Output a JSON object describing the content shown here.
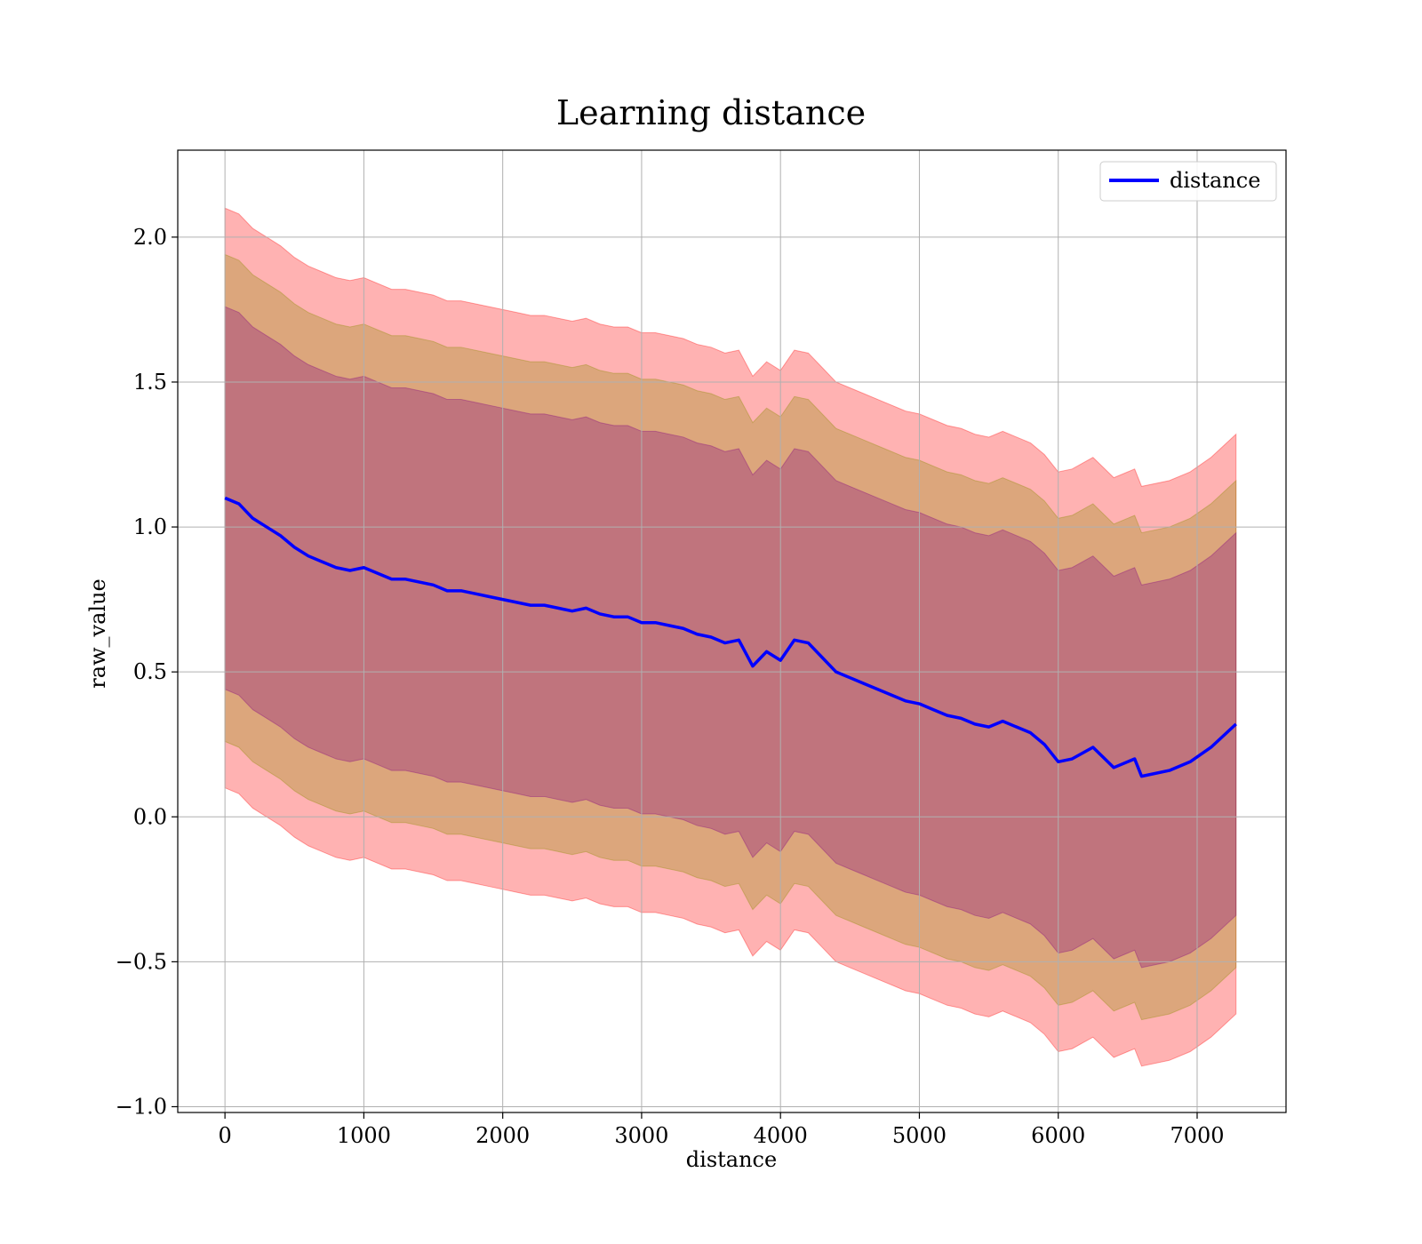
{
  "chart_data": {
    "type": "line",
    "title": "Learning distance",
    "xlabel": "distance",
    "ylabel": "raw_value",
    "xlim": [
      -340,
      7640
    ],
    "ylim": [
      -1.02,
      2.3
    ],
    "x_ticks": [
      0,
      1000,
      2000,
      3000,
      4000,
      5000,
      6000,
      7000
    ],
    "x_tick_labels": [
      "0",
      "1000",
      "2000",
      "3000",
      "4000",
      "5000",
      "6000",
      "7000"
    ],
    "y_ticks": [
      -1.0,
      -0.5,
      0.0,
      0.5,
      1.0,
      1.5,
      2.0
    ],
    "y_tick_labels": [
      "−1.0",
      "−0.5",
      "0.0",
      "0.5",
      "1.0",
      "1.5",
      "2.0"
    ],
    "grid": true,
    "legend": {
      "position": "top-right",
      "entries": [
        "distance"
      ]
    },
    "colors": {
      "line": "#0000ff",
      "band_outer": "#ff0000",
      "band_middle": "#8b8b00",
      "band_inner": "#800080",
      "grid": "#b0b0b0"
    },
    "x": [
      0,
      100,
      200,
      300,
      400,
      500,
      600,
      700,
      800,
      900,
      1000,
      1100,
      1200,
      1300,
      1400,
      1500,
      1600,
      1700,
      1800,
      1900,
      2000,
      2100,
      2200,
      2300,
      2400,
      2500,
      2600,
      2700,
      2800,
      2900,
      3000,
      3100,
      3200,
      3300,
      3400,
      3500,
      3600,
      3700,
      3800,
      3900,
      4000,
      4100,
      4200,
      4300,
      4400,
      4500,
      4600,
      4700,
      4800,
      4900,
      5000,
      5100,
      5200,
      5300,
      5400,
      5500,
      5600,
      5700,
      5800,
      5900,
      6000,
      6100,
      6250,
      6400,
      6550,
      6600,
      6800,
      6950,
      7100,
      7280
    ],
    "series": [
      {
        "name": "distance",
        "values": [
          1.1,
          1.08,
          1.03,
          1.0,
          0.97,
          0.93,
          0.9,
          0.88,
          0.86,
          0.85,
          0.86,
          0.84,
          0.82,
          0.82,
          0.81,
          0.8,
          0.78,
          0.78,
          0.77,
          0.76,
          0.75,
          0.74,
          0.73,
          0.73,
          0.72,
          0.71,
          0.72,
          0.7,
          0.69,
          0.69,
          0.67,
          0.67,
          0.66,
          0.65,
          0.63,
          0.62,
          0.6,
          0.61,
          0.52,
          0.57,
          0.54,
          0.61,
          0.6,
          0.55,
          0.5,
          0.48,
          0.46,
          0.44,
          0.42,
          0.4,
          0.39,
          0.37,
          0.35,
          0.34,
          0.32,
          0.31,
          0.33,
          0.31,
          0.29,
          0.25,
          0.19,
          0.2,
          0.24,
          0.17,
          0.2,
          0.14,
          0.16,
          0.19,
          0.24,
          0.32
        ]
      }
    ],
    "bands": [
      {
        "lower_offset": -1.0,
        "upper_offset": 1.0,
        "color": "#ff0000"
      },
      {
        "lower_offset": -0.84,
        "upper_offset": 0.84,
        "color": "#8b8b00"
      },
      {
        "lower_offset": -0.66,
        "upper_offset": 0.66,
        "color": "#800080"
      }
    ]
  }
}
